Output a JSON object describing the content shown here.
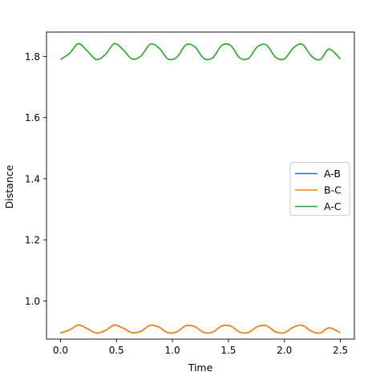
{
  "chart_data": {
    "type": "line",
    "xlabel": "Time",
    "ylabel": "Distance",
    "xlim": [
      -0.125,
      2.625
    ],
    "ylim": [
      0.875,
      1.88
    ],
    "xticks": [
      0.0,
      0.5,
      1.0,
      1.5,
      2.0,
      2.5
    ],
    "xtick_labels": [
      "0.0",
      "0.5",
      "1.0",
      "1.5",
      "2.0",
      "2.5"
    ],
    "yticks": [
      1.0,
      1.2,
      1.4,
      1.6,
      1.8
    ],
    "ytick_labels": [
      "1.0",
      "1.2",
      "1.4",
      "1.6",
      "1.8"
    ],
    "legend_position": "center-right",
    "grid": false,
    "series": [
      {
        "name": "A-B",
        "color": "#1f77b4",
        "x": [
          0.0,
          0.08,
          0.16,
          0.24,
          0.32,
          0.4,
          0.48,
          0.56,
          0.64,
          0.72,
          0.8,
          0.88,
          0.96,
          1.04,
          1.12,
          1.2,
          1.28,
          1.36,
          1.44,
          1.52,
          1.6,
          1.68,
          1.76,
          1.84,
          1.92,
          2.0,
          2.08,
          2.16,
          2.24,
          2.32,
          2.4,
          2.5
        ],
        "y": [
          0.895,
          0.905,
          0.921,
          0.909,
          0.895,
          0.903,
          0.921,
          0.911,
          0.896,
          0.901,
          0.92,
          0.914,
          0.896,
          0.899,
          0.919,
          0.916,
          0.897,
          0.898,
          0.918,
          0.918,
          0.898,
          0.897,
          0.916,
          0.919,
          0.899,
          0.896,
          0.914,
          0.92,
          0.901,
          0.895,
          0.912,
          0.896
        ]
      },
      {
        "name": "B-C",
        "color": "#ff7f0e",
        "x": [
          0.0,
          0.08,
          0.16,
          0.24,
          0.32,
          0.4,
          0.48,
          0.56,
          0.64,
          0.72,
          0.8,
          0.88,
          0.96,
          1.04,
          1.12,
          1.2,
          1.28,
          1.36,
          1.44,
          1.52,
          1.6,
          1.68,
          1.76,
          1.84,
          1.92,
          2.0,
          2.08,
          2.16,
          2.24,
          2.32,
          2.4,
          2.5
        ],
        "y": [
          0.895,
          0.905,
          0.921,
          0.909,
          0.895,
          0.903,
          0.921,
          0.911,
          0.896,
          0.901,
          0.92,
          0.914,
          0.896,
          0.899,
          0.919,
          0.916,
          0.897,
          0.898,
          0.918,
          0.918,
          0.898,
          0.897,
          0.916,
          0.919,
          0.899,
          0.896,
          0.914,
          0.92,
          0.901,
          0.895,
          0.912,
          0.896
        ]
      },
      {
        "name": "A-C",
        "color": "#2ca02c",
        "x": [
          0.0,
          0.08,
          0.16,
          0.24,
          0.32,
          0.4,
          0.48,
          0.56,
          0.64,
          0.72,
          0.8,
          0.88,
          0.96,
          1.04,
          1.12,
          1.2,
          1.28,
          1.36,
          1.44,
          1.52,
          1.6,
          1.68,
          1.76,
          1.84,
          1.92,
          2.0,
          2.08,
          2.16,
          2.24,
          2.32,
          2.4,
          2.5
        ],
        "y": [
          1.79,
          1.81,
          1.842,
          1.818,
          1.79,
          1.806,
          1.842,
          1.822,
          1.792,
          1.802,
          1.84,
          1.828,
          1.792,
          1.798,
          1.838,
          1.832,
          1.794,
          1.796,
          1.836,
          1.836,
          1.796,
          1.794,
          1.832,
          1.838,
          1.798,
          1.792,
          1.828,
          1.84,
          1.802,
          1.79,
          1.824,
          1.792
        ]
      }
    ]
  }
}
